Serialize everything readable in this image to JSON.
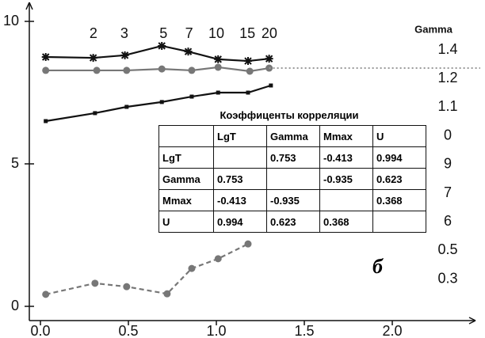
{
  "chart_data": {
    "type": "line",
    "xlim": [
      -0.07,
      2.5
    ],
    "ylim": [
      -0.5,
      10.6
    ],
    "xticks": [
      {
        "value": 0,
        "label": "0.0"
      },
      0.5,
      {
        "value": 1,
        "label": "1.0"
      },
      1.5,
      {
        "value": 2,
        "label": "2.0"
      }
    ],
    "yticks": [
      0,
      5,
      10
    ],
    "x2ticks": [
      {
        "value": 0.301,
        "label": "2"
      },
      {
        "value": 0.477,
        "label": "3"
      },
      {
        "value": 0.699,
        "label": "5"
      },
      {
        "value": 0.845,
        "label": "7"
      },
      {
        "value": 1,
        "label": "10"
      },
      {
        "value": 1.176,
        "label": "15"
      },
      {
        "value": 1.301,
        "label": "20"
      }
    ],
    "right_title": "Gamma",
    "right_labels": [
      "1.4",
      "1.2",
      "1.1",
      "0",
      "9",
      "7",
      "6",
      "0.5",
      "0.3"
    ],
    "series": [
      {
        "color": "#111111",
        "marker": "star",
        "dash": "solid",
        "x": [
          0.03,
          0.3,
          0.48,
          0.69,
          0.84,
          1.01,
          1.18,
          1.3
        ],
        "values": [
          8.75,
          8.72,
          8.81,
          9.14,
          8.94,
          8.67,
          8.61,
          8.69
        ]
      },
      {
        "color": "#777777",
        "marker": "circle",
        "dash": "solid",
        "x": [
          0.03,
          0.32,
          0.49,
          0.69,
          0.86,
          1.01,
          1.19,
          1.3
        ],
        "values": [
          8.28,
          8.28,
          8.28,
          8.33,
          8.28,
          8.39,
          8.25,
          8.36
        ]
      },
      {
        "color": "#999999",
        "marker": "none",
        "dash": "dotted",
        "x": [
          1.3,
          2.5
        ],
        "values": [
          8.36,
          8.36
        ]
      },
      {
        "color": "#111111",
        "marker": "square",
        "dash": "solid",
        "x": [
          0.03,
          0.31,
          0.49,
          0.69,
          0.86,
          1.01,
          1.18,
          1.31
        ],
        "values": [
          6.5,
          6.78,
          7.0,
          7.17,
          7.36,
          7.5,
          7.5,
          7.75
        ]
      },
      {
        "color": "#777777",
        "marker": "circle",
        "dash": "dashed",
        "x": [
          0.03,
          0.31,
          0.49,
          0.72,
          0.86,
          1.01,
          1.18
        ],
        "values": [
          0.42,
          0.81,
          0.69,
          0.44,
          1.33,
          1.67,
          2.19
        ]
      }
    ],
    "annotation": "б",
    "table": {
      "title": "Коэффиценты корреляции",
      "header": [
        null,
        "LgT",
        "Gamma",
        "Mmax",
        "U"
      ],
      "rows": [
        [
          "LgT",
          null,
          "0.753",
          "-0.413",
          "0.994"
        ],
        [
          "Gamma",
          "0.753",
          null,
          "-0.935",
          "0.623"
        ],
        [
          "Mmax",
          "-0.413",
          "-0.935",
          null,
          "0.368"
        ],
        [
          "U",
          "0.994",
          "0.623",
          "0.368",
          null
        ]
      ]
    }
  }
}
